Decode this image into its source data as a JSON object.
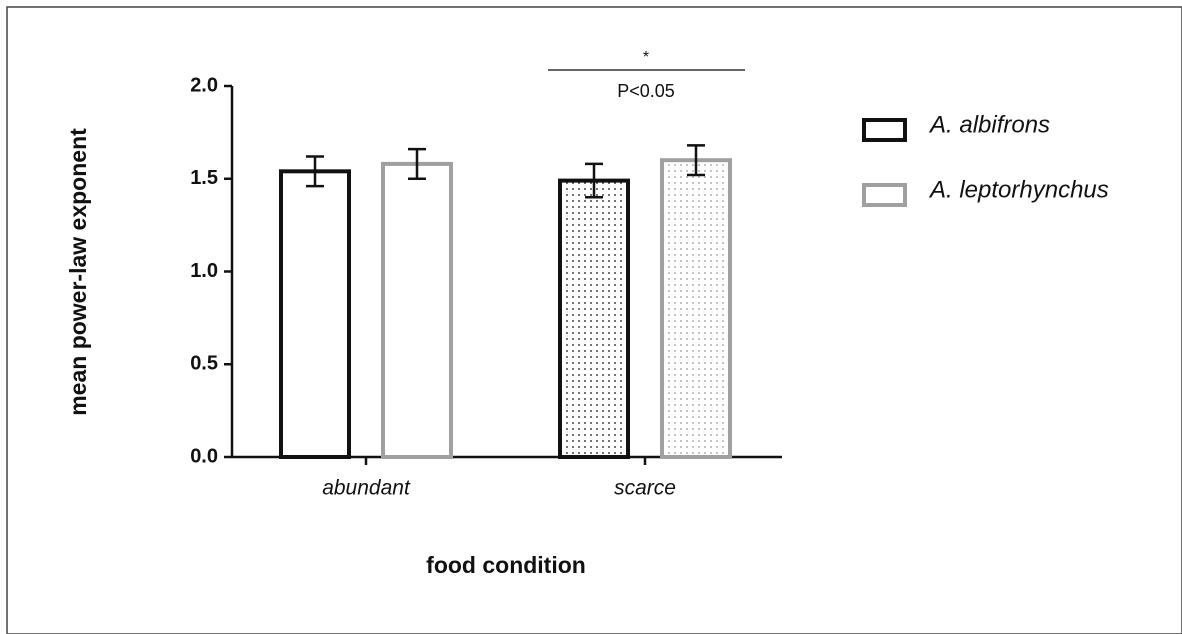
{
  "chart_data": {
    "type": "bar",
    "x_label": "food condition",
    "y_label": "mean power-law exponent",
    "categories": [
      "abundant",
      "scarce"
    ],
    "dotted": [
      false,
      true
    ],
    "series": [
      {
        "name": "A. albifrons",
        "color": "#111111",
        "values": [
          1.54,
          1.49
        ],
        "errors": [
          0.08,
          0.09
        ]
      },
      {
        "name": "A. leptorhynchus",
        "color": "#a0a0a0",
        "values": [
          1.58,
          1.6
        ],
        "errors": [
          0.08,
          0.08
        ]
      }
    ],
    "ylim": [
      0,
      2.0
    ],
    "yticks": [
      {
        "value": 0,
        "label": "0.0"
      },
      0.5,
      {
        "value": 1,
        "label": "1.0"
      },
      1.5,
      {
        "value": 2,
        "label": "2.0"
      }
    ],
    "significance": {
      "marker": "*",
      "text": "P<0.05"
    },
    "legend": "right"
  }
}
